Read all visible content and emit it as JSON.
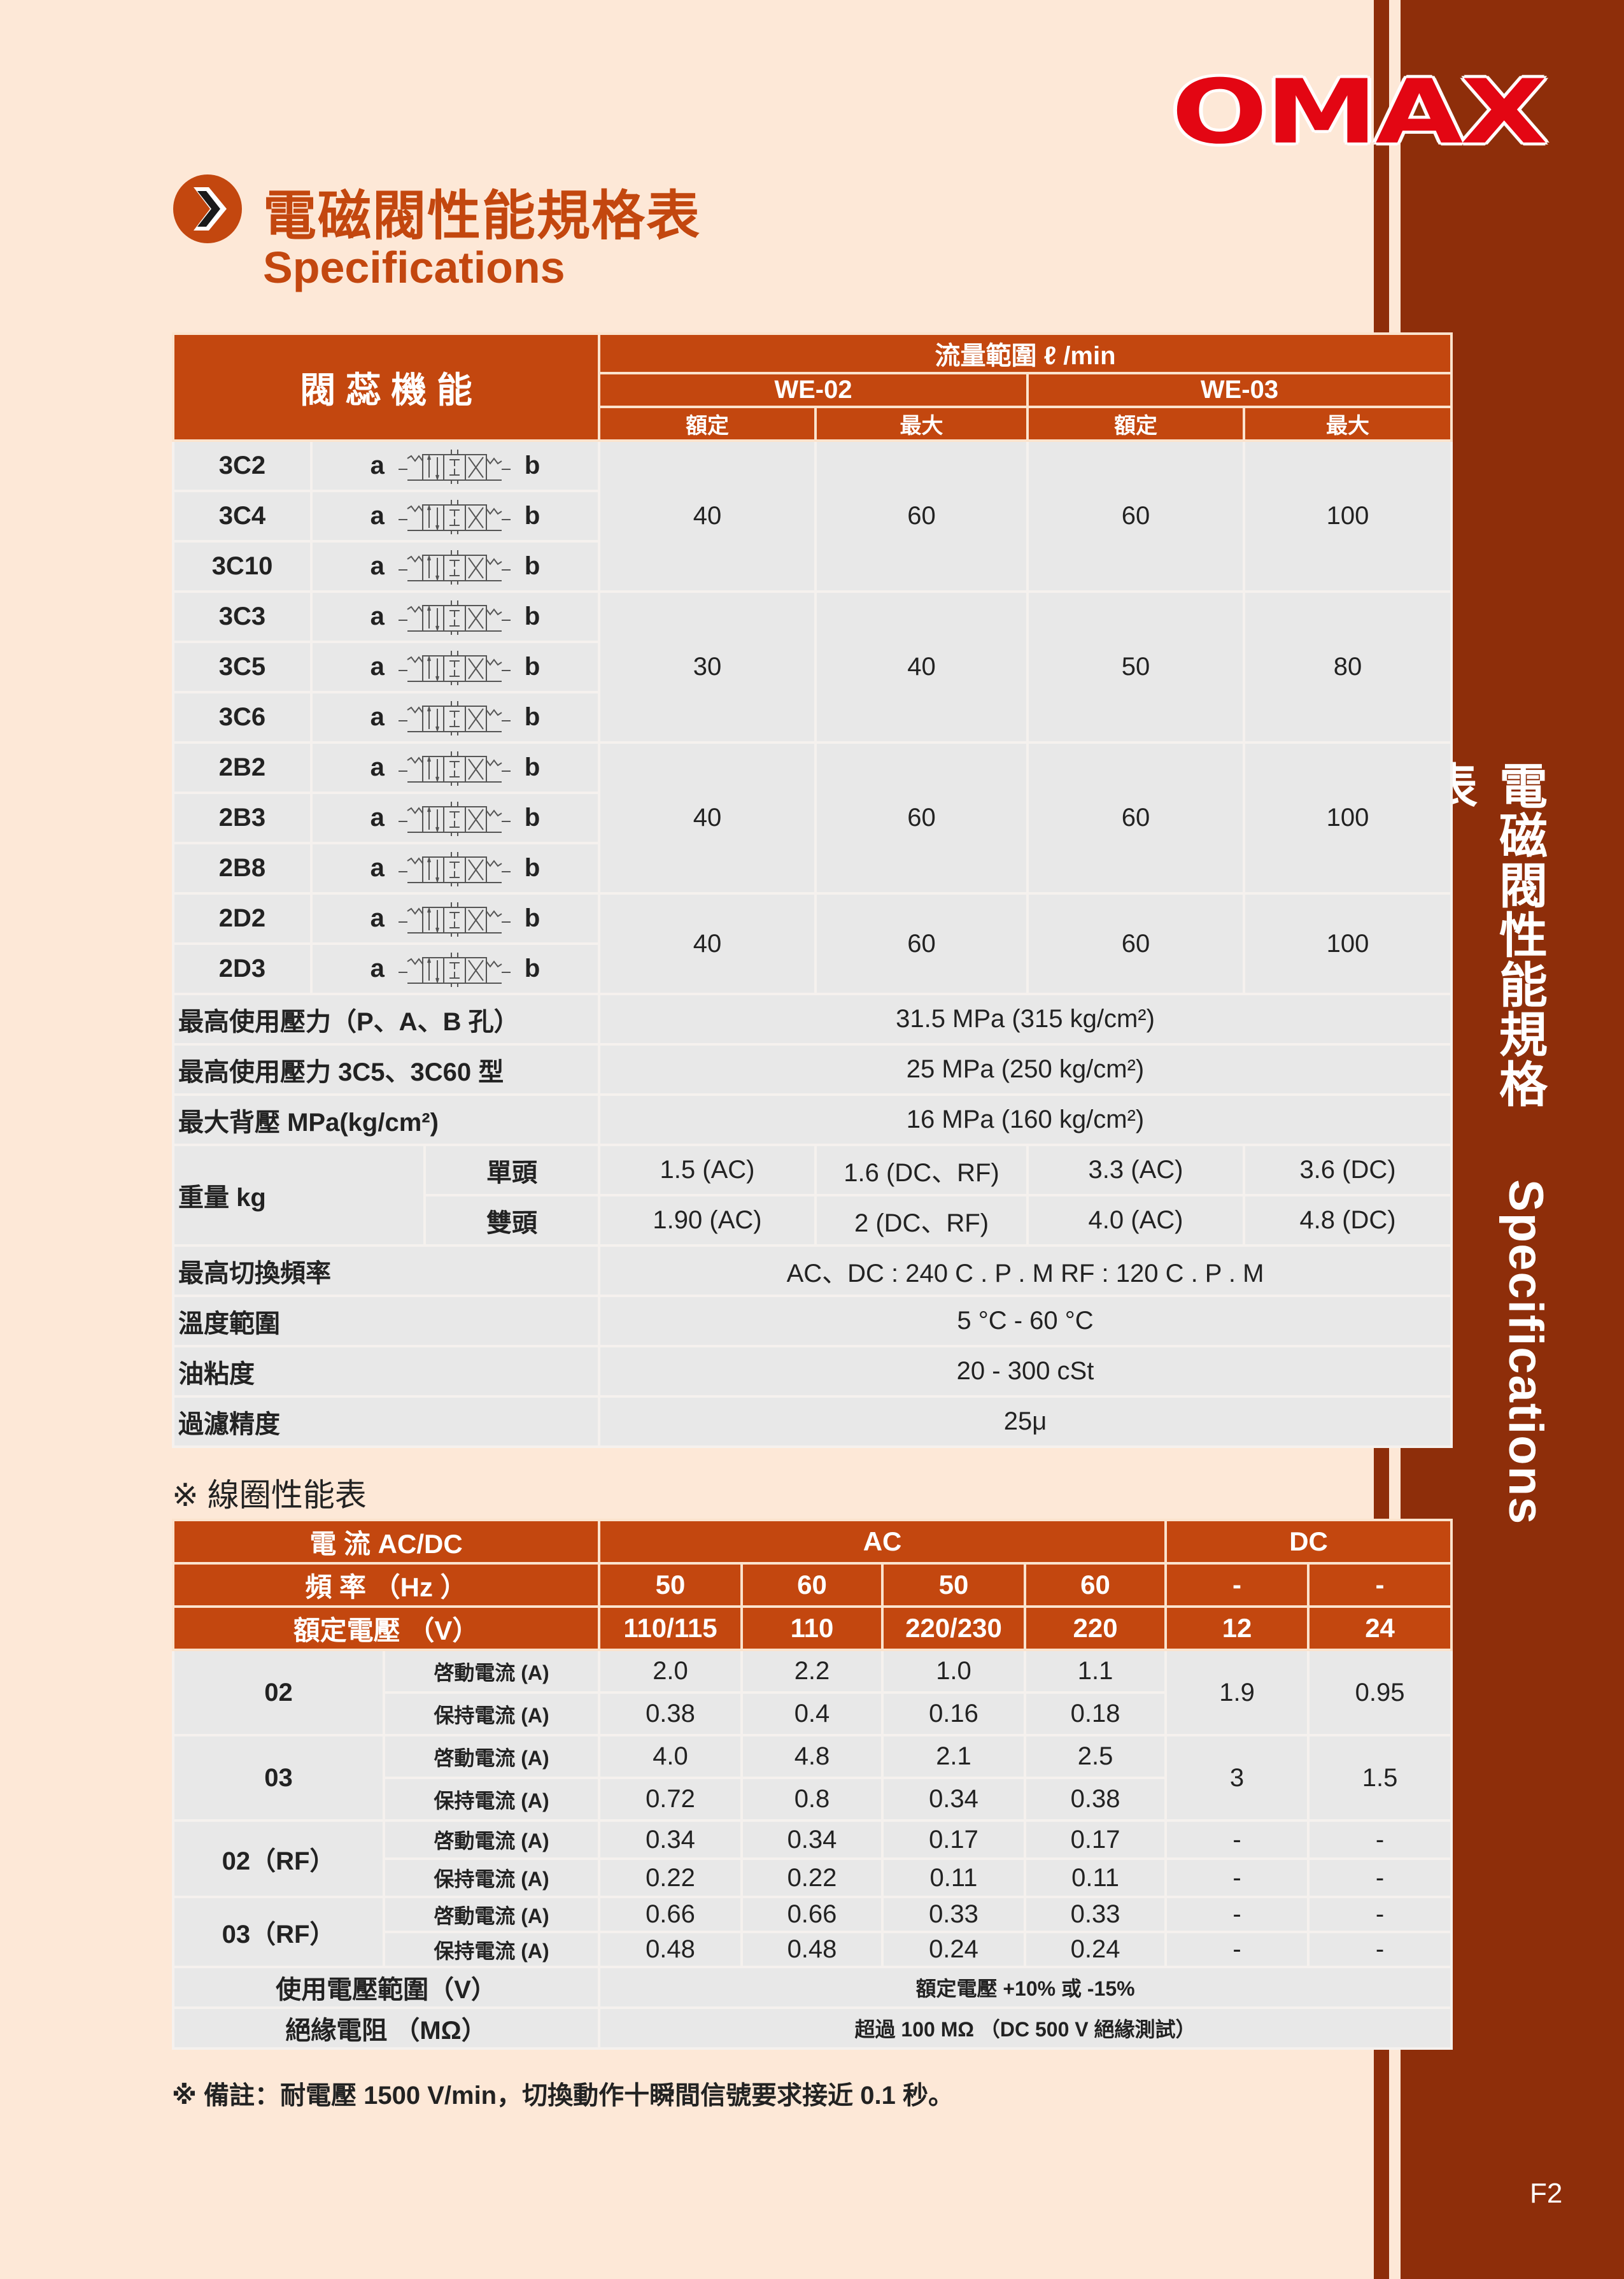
{
  "brand": {
    "logo": "OMAX",
    "page_number": "F2",
    "side_title_zh": "電磁閥性能規格表",
    "side_title_en": "Specifications"
  },
  "colors": {
    "accent": "#c3470f",
    "band": "#8e2e0a",
    "logo_red": "#e30613",
    "background": "#fde8d7",
    "cell": "#e8e8e8"
  },
  "header": {
    "icon": "chevron-right-circle-icon",
    "title_zh": "電磁閥性能規格表",
    "title_en": "Specifications"
  },
  "spec_table": {
    "header": {
      "function": "閥 蕊 機 能",
      "flow_range": "流量範圍 ℓ /min",
      "models": [
        "WE-02",
        "WE-03"
      ],
      "sub": [
        "額定",
        "最大",
        "額定",
        "最大"
      ]
    },
    "side_a": "a",
    "side_b": "b",
    "valve_groups": [
      {
        "codes": [
          "3C2",
          "3C4",
          "3C10"
        ],
        "values": [
          "40",
          "60",
          "60",
          "100"
        ]
      },
      {
        "codes": [
          "3C3",
          "3C5",
          "3C6"
        ],
        "values": [
          "30",
          "40",
          "50",
          "80"
        ]
      },
      {
        "codes": [
          "2B2",
          "2B3",
          "2B8"
        ],
        "values": [
          "40",
          "60",
          "60",
          "100"
        ]
      },
      {
        "codes": [
          "2D2",
          "2D3"
        ],
        "values": [
          "40",
          "60",
          "60",
          "100"
        ]
      }
    ],
    "specs_before": [
      {
        "label": "最高使用壓力（P、A、B 孔）",
        "value": "31.5 MPa (315 kg/cm²)"
      },
      {
        "label": "最高使用壓力 3C5、3C60 型",
        "value": "25 MPa (250 kg/cm²)"
      },
      {
        "label": "最大背壓 MPa(kg/cm²)",
        "value": "16 MPa (160 kg/cm²)"
      }
    ],
    "weight": {
      "label": "重量 kg",
      "rows": [
        {
          "sub": "單頭",
          "values": [
            "1.5 (AC)",
            "1.6 (DC、RF)",
            "3.3 (AC)",
            "3.6 (DC)"
          ]
        },
        {
          "sub": "雙頭",
          "values": [
            "1.90 (AC)",
            "2 (DC、RF)",
            "4.0 (AC)",
            "4.8 (DC)"
          ]
        }
      ]
    },
    "specs_after": [
      {
        "label": "最高切換頻率",
        "value": "AC、DC : 240 C . P . M      RF : 120 C . P . M"
      },
      {
        "label": "溫度範圍",
        "value": "5 °C - 60 °C"
      },
      {
        "label": "油粘度",
        "value": "20 - 300 cSt"
      },
      {
        "label": "過濾精度",
        "value": "25μ"
      }
    ]
  },
  "coil_section_title": "※  線圈性能表",
  "coil_table": {
    "row1": {
      "label": "電 流 AC/DC",
      "ac": "AC",
      "dc": "DC"
    },
    "row2": {
      "label": "頻 率 （Hz ）",
      "values": [
        "50",
        "60",
        "50",
        "60",
        "-",
        "-"
      ]
    },
    "row3": {
      "label": "額定電壓 （V）",
      "values": [
        "110/115",
        "110",
        "220/230",
        "220",
        "12",
        "24"
      ]
    },
    "groups": [
      {
        "model": "02",
        "merged_dc": true,
        "dc": [
          "1.9",
          "0.95"
        ],
        "rows": [
          {
            "label": "啓動電流 (A)",
            "ac": [
              "2.0",
              "2.2",
              "1.0",
              "1.1"
            ]
          },
          {
            "label": "保持電流 (A)",
            "ac": [
              "0.38",
              "0.4",
              "0.16",
              "0.18"
            ]
          }
        ]
      },
      {
        "model": "03",
        "merged_dc": true,
        "dc": [
          "3",
          "1.5"
        ],
        "rows": [
          {
            "label": "啓動電流 (A)",
            "ac": [
              "4.0",
              "4.8",
              "2.1",
              "2.5"
            ]
          },
          {
            "label": "保持電流 (A)",
            "ac": [
              "0.72",
              "0.8",
              "0.34",
              "0.38"
            ]
          }
        ]
      },
      {
        "model": "02（RF）",
        "merged_dc": false,
        "dc": [
          "-",
          "-"
        ],
        "rows": [
          {
            "label": "啓動電流 (A)",
            "ac": [
              "0.34",
              "0.34",
              "0.17",
              "0.17"
            ]
          },
          {
            "label": "保持電流 (A)",
            "ac": [
              "0.22",
              "0.22",
              "0.11",
              "0.11"
            ]
          }
        ]
      },
      {
        "model": "03（RF）",
        "merged_dc": false,
        "dc": [
          "-",
          "-"
        ],
        "rows": [
          {
            "label": "啓動電流 (A)",
            "ac": [
              "0.66",
              "0.66",
              "0.33",
              "0.33"
            ]
          },
          {
            "label": "保持電流 (A)",
            "ac": [
              "0.48",
              "0.48",
              "0.24",
              "0.24"
            ]
          }
        ]
      }
    ],
    "footer": [
      {
        "label": "使用電壓範圍（V）",
        "value": "額定電壓 +10% 或 -15%"
      },
      {
        "label": "絕緣電阻 （MΩ）",
        "value": "超過 100 MΩ （DC 500 V 絕緣測試）"
      }
    ]
  },
  "note": "※  備註：耐電壓 1500 V/min，切換動作十瞬間信號要求接近 0.1 秒。"
}
